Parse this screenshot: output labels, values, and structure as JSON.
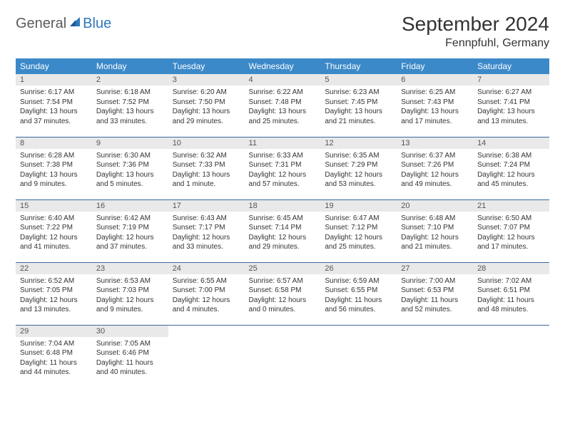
{
  "logo": {
    "general": "General",
    "blue": "Blue"
  },
  "title": "September 2024",
  "location": "Fennpfuhl, Germany",
  "colors": {
    "header_bg": "#3b89c9",
    "header_text": "#ffffff",
    "daynum_bg": "#e9e9e9",
    "daynum_text": "#555555",
    "row_border": "#3b6a9a",
    "body_text": "#333333",
    "logo_gray": "#5a5a5a",
    "logo_blue": "#2f78bd"
  },
  "day_headers": [
    "Sunday",
    "Monday",
    "Tuesday",
    "Wednesday",
    "Thursday",
    "Friday",
    "Saturday"
  ],
  "weeks": [
    [
      {
        "n": "1",
        "sr": "Sunrise: 6:17 AM",
        "ss": "Sunset: 7:54 PM",
        "d1": "Daylight: 13 hours",
        "d2": "and 37 minutes."
      },
      {
        "n": "2",
        "sr": "Sunrise: 6:18 AM",
        "ss": "Sunset: 7:52 PM",
        "d1": "Daylight: 13 hours",
        "d2": "and 33 minutes."
      },
      {
        "n": "3",
        "sr": "Sunrise: 6:20 AM",
        "ss": "Sunset: 7:50 PM",
        "d1": "Daylight: 13 hours",
        "d2": "and 29 minutes."
      },
      {
        "n": "4",
        "sr": "Sunrise: 6:22 AM",
        "ss": "Sunset: 7:48 PM",
        "d1": "Daylight: 13 hours",
        "d2": "and 25 minutes."
      },
      {
        "n": "5",
        "sr": "Sunrise: 6:23 AM",
        "ss": "Sunset: 7:45 PM",
        "d1": "Daylight: 13 hours",
        "d2": "and 21 minutes."
      },
      {
        "n": "6",
        "sr": "Sunrise: 6:25 AM",
        "ss": "Sunset: 7:43 PM",
        "d1": "Daylight: 13 hours",
        "d2": "and 17 minutes."
      },
      {
        "n": "7",
        "sr": "Sunrise: 6:27 AM",
        "ss": "Sunset: 7:41 PM",
        "d1": "Daylight: 13 hours",
        "d2": "and 13 minutes."
      }
    ],
    [
      {
        "n": "8",
        "sr": "Sunrise: 6:28 AM",
        "ss": "Sunset: 7:38 PM",
        "d1": "Daylight: 13 hours",
        "d2": "and 9 minutes."
      },
      {
        "n": "9",
        "sr": "Sunrise: 6:30 AM",
        "ss": "Sunset: 7:36 PM",
        "d1": "Daylight: 13 hours",
        "d2": "and 5 minutes."
      },
      {
        "n": "10",
        "sr": "Sunrise: 6:32 AM",
        "ss": "Sunset: 7:33 PM",
        "d1": "Daylight: 13 hours",
        "d2": "and 1 minute."
      },
      {
        "n": "11",
        "sr": "Sunrise: 6:33 AM",
        "ss": "Sunset: 7:31 PM",
        "d1": "Daylight: 12 hours",
        "d2": "and 57 minutes."
      },
      {
        "n": "12",
        "sr": "Sunrise: 6:35 AM",
        "ss": "Sunset: 7:29 PM",
        "d1": "Daylight: 12 hours",
        "d2": "and 53 minutes."
      },
      {
        "n": "13",
        "sr": "Sunrise: 6:37 AM",
        "ss": "Sunset: 7:26 PM",
        "d1": "Daylight: 12 hours",
        "d2": "and 49 minutes."
      },
      {
        "n": "14",
        "sr": "Sunrise: 6:38 AM",
        "ss": "Sunset: 7:24 PM",
        "d1": "Daylight: 12 hours",
        "d2": "and 45 minutes."
      }
    ],
    [
      {
        "n": "15",
        "sr": "Sunrise: 6:40 AM",
        "ss": "Sunset: 7:22 PM",
        "d1": "Daylight: 12 hours",
        "d2": "and 41 minutes."
      },
      {
        "n": "16",
        "sr": "Sunrise: 6:42 AM",
        "ss": "Sunset: 7:19 PM",
        "d1": "Daylight: 12 hours",
        "d2": "and 37 minutes."
      },
      {
        "n": "17",
        "sr": "Sunrise: 6:43 AM",
        "ss": "Sunset: 7:17 PM",
        "d1": "Daylight: 12 hours",
        "d2": "and 33 minutes."
      },
      {
        "n": "18",
        "sr": "Sunrise: 6:45 AM",
        "ss": "Sunset: 7:14 PM",
        "d1": "Daylight: 12 hours",
        "d2": "and 29 minutes."
      },
      {
        "n": "19",
        "sr": "Sunrise: 6:47 AM",
        "ss": "Sunset: 7:12 PM",
        "d1": "Daylight: 12 hours",
        "d2": "and 25 minutes."
      },
      {
        "n": "20",
        "sr": "Sunrise: 6:48 AM",
        "ss": "Sunset: 7:10 PM",
        "d1": "Daylight: 12 hours",
        "d2": "and 21 minutes."
      },
      {
        "n": "21",
        "sr": "Sunrise: 6:50 AM",
        "ss": "Sunset: 7:07 PM",
        "d1": "Daylight: 12 hours",
        "d2": "and 17 minutes."
      }
    ],
    [
      {
        "n": "22",
        "sr": "Sunrise: 6:52 AM",
        "ss": "Sunset: 7:05 PM",
        "d1": "Daylight: 12 hours",
        "d2": "and 13 minutes."
      },
      {
        "n": "23",
        "sr": "Sunrise: 6:53 AM",
        "ss": "Sunset: 7:03 PM",
        "d1": "Daylight: 12 hours",
        "d2": "and 9 minutes."
      },
      {
        "n": "24",
        "sr": "Sunrise: 6:55 AM",
        "ss": "Sunset: 7:00 PM",
        "d1": "Daylight: 12 hours",
        "d2": "and 4 minutes."
      },
      {
        "n": "25",
        "sr": "Sunrise: 6:57 AM",
        "ss": "Sunset: 6:58 PM",
        "d1": "Daylight: 12 hours",
        "d2": "and 0 minutes."
      },
      {
        "n": "26",
        "sr": "Sunrise: 6:59 AM",
        "ss": "Sunset: 6:55 PM",
        "d1": "Daylight: 11 hours",
        "d2": "and 56 minutes."
      },
      {
        "n": "27",
        "sr": "Sunrise: 7:00 AM",
        "ss": "Sunset: 6:53 PM",
        "d1": "Daylight: 11 hours",
        "d2": "and 52 minutes."
      },
      {
        "n": "28",
        "sr": "Sunrise: 7:02 AM",
        "ss": "Sunset: 6:51 PM",
        "d1": "Daylight: 11 hours",
        "d2": "and 48 minutes."
      }
    ],
    [
      {
        "n": "29",
        "sr": "Sunrise: 7:04 AM",
        "ss": "Sunset: 6:48 PM",
        "d1": "Daylight: 11 hours",
        "d2": "and 44 minutes."
      },
      {
        "n": "30",
        "sr": "Sunrise: 7:05 AM",
        "ss": "Sunset: 6:46 PM",
        "d1": "Daylight: 11 hours",
        "d2": "and 40 minutes."
      },
      null,
      null,
      null,
      null,
      null
    ]
  ]
}
